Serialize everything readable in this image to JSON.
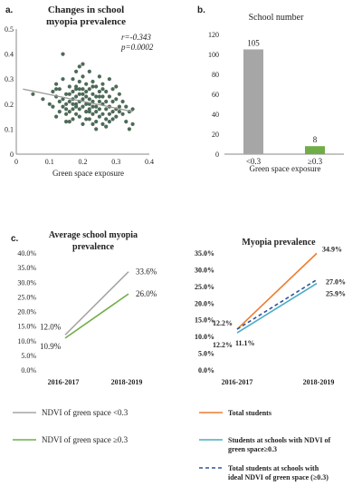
{
  "panels": {
    "a": {
      "tag": "a."
    },
    "b": {
      "tag": "b."
    },
    "c": {
      "tag": "c."
    }
  },
  "chart_data": [
    {
      "id": "a",
      "type": "scatter",
      "title_lines": [
        "Changes in school",
        "myopia prevalence"
      ],
      "xlabel": "Green space exposure",
      "ylabel": "",
      "xlim": [
        0,
        0.4
      ],
      "ylim": [
        0,
        0.5
      ],
      "xticks": [
        "0",
        "0.1",
        "0.2",
        "0.3",
        "0.4"
      ],
      "yticks": [
        "0",
        "0.1",
        "0.2",
        "0.3",
        "0.4",
        "0.5"
      ],
      "annotations": [
        "r=-0.343",
        "p=0.0002"
      ],
      "trendline": {
        "x": [
          0.02,
          0.35
        ],
        "y": [
          0.26,
          0.17
        ]
      },
      "point_color": "#4d6b57",
      "trend_color": "#999999",
      "points": [
        [
          0.05,
          0.24
        ],
        [
          0.08,
          0.22
        ],
        [
          0.1,
          0.2
        ],
        [
          0.11,
          0.25
        ],
        [
          0.11,
          0.19
        ],
        [
          0.12,
          0.15
        ],
        [
          0.12,
          0.23
        ],
        [
          0.12,
          0.28
        ],
        [
          0.13,
          0.26
        ],
        [
          0.13,
          0.21
        ],
        [
          0.13,
          0.17
        ],
        [
          0.14,
          0.4
        ],
        [
          0.14,
          0.3
        ],
        [
          0.14,
          0.22
        ],
        [
          0.14,
          0.19
        ],
        [
          0.15,
          0.24
        ],
        [
          0.15,
          0.18
        ],
        [
          0.15,
          0.13
        ],
        [
          0.15,
          0.16
        ],
        [
          0.16,
          0.27
        ],
        [
          0.16,
          0.21
        ],
        [
          0.16,
          0.24
        ],
        [
          0.16,
          0.17
        ],
        [
          0.17,
          0.3
        ],
        [
          0.17,
          0.25
        ],
        [
          0.17,
          0.2
        ],
        [
          0.17,
          0.14
        ],
        [
          0.17,
          0.22
        ],
        [
          0.18,
          0.33
        ],
        [
          0.18,
          0.26
        ],
        [
          0.18,
          0.23
        ],
        [
          0.18,
          0.19
        ],
        [
          0.18,
          0.16
        ],
        [
          0.18,
          0.27
        ],
        [
          0.19,
          0.35
        ],
        [
          0.19,
          0.29
        ],
        [
          0.19,
          0.24
        ],
        [
          0.19,
          0.21
        ],
        [
          0.19,
          0.18
        ],
        [
          0.19,
          0.15
        ],
        [
          0.2,
          0.36
        ],
        [
          0.2,
          0.31
        ],
        [
          0.2,
          0.26
        ],
        [
          0.2,
          0.22
        ],
        [
          0.2,
          0.19
        ],
        [
          0.2,
          0.12
        ],
        [
          0.2,
          0.24
        ],
        [
          0.21,
          0.28
        ],
        [
          0.21,
          0.25
        ],
        [
          0.21,
          0.2
        ],
        [
          0.21,
          0.17
        ],
        [
          0.21,
          0.23
        ],
        [
          0.22,
          0.33
        ],
        [
          0.22,
          0.26
        ],
        [
          0.22,
          0.22
        ],
        [
          0.22,
          0.18
        ],
        [
          0.22,
          0.14
        ],
        [
          0.22,
          0.2
        ],
        [
          0.23,
          0.29
        ],
        [
          0.23,
          0.24
        ],
        [
          0.23,
          0.21
        ],
        [
          0.23,
          0.16
        ],
        [
          0.23,
          0.19
        ],
        [
          0.23,
          0.12
        ],
        [
          0.24,
          0.27
        ],
        [
          0.24,
          0.23
        ],
        [
          0.24,
          0.19
        ],
        [
          0.24,
          0.1
        ],
        [
          0.24,
          0.17
        ],
        [
          0.25,
          0.31
        ],
        [
          0.25,
          0.25
        ],
        [
          0.25,
          0.21
        ],
        [
          0.25,
          0.18
        ],
        [
          0.25,
          0.15
        ],
        [
          0.26,
          0.28
        ],
        [
          0.26,
          0.23
        ],
        [
          0.26,
          0.2
        ],
        [
          0.26,
          0.16
        ],
        [
          0.26,
          0.12
        ],
        [
          0.27,
          0.25
        ],
        [
          0.27,
          0.21
        ],
        [
          0.27,
          0.18
        ],
        [
          0.27,
          0.14
        ],
        [
          0.28,
          0.3
        ],
        [
          0.28,
          0.23
        ],
        [
          0.28,
          0.19
        ],
        [
          0.28,
          0.16
        ],
        [
          0.29,
          0.21
        ],
        [
          0.29,
          0.17
        ],
        [
          0.29,
          0.26
        ],
        [
          0.3,
          0.22
        ],
        [
          0.3,
          0.18
        ],
        [
          0.3,
          0.15
        ],
        [
          0.31,
          0.24
        ],
        [
          0.31,
          0.19
        ],
        [
          0.32,
          0.21
        ],
        [
          0.32,
          0.16
        ],
        [
          0.33,
          0.19
        ],
        [
          0.33,
          0.13
        ],
        [
          0.34,
          0.17
        ],
        [
          0.34,
          0.1
        ],
        [
          0.35,
          0.18
        ],
        [
          0.35,
          0.12
        ],
        [
          0.3,
          0.27
        ],
        [
          0.27,
          0.11
        ],
        [
          0.21,
          0.14
        ],
        [
          0.16,
          0.13
        ],
        [
          0.24,
          0.13
        ],
        [
          0.26,
          0.26
        ],
        [
          0.15,
          0.2
        ],
        [
          0.29,
          0.14
        ],
        [
          0.18,
          0.2
        ],
        [
          0.22,
          0.17
        ],
        [
          0.19,
          0.26
        ],
        [
          0.25,
          0.23
        ],
        [
          0.31,
          0.17
        ],
        [
          0.12,
          0.26
        ],
        [
          0.28,
          0.13
        ],
        [
          0.17,
          0.18
        ],
        [
          0.23,
          0.27
        ]
      ]
    },
    {
      "id": "b",
      "type": "bar",
      "title": "School number",
      "categories": [
        "<0.3",
        "≥0.3"
      ],
      "values": [
        105,
        8
      ],
      "value_labels": [
        "105",
        "8"
      ],
      "bar_colors": [
        "#a6a6a6",
        "#70ad47"
      ],
      "xlabel": "Green space exposure",
      "ylim": [
        0,
        120
      ],
      "yticks": [
        "0",
        "20",
        "40",
        "60",
        "80",
        "100",
        "120"
      ]
    },
    {
      "id": "c",
      "type": "line",
      "title_lines": [
        "Average school myopia",
        "prevalence"
      ],
      "categories": [
        "2016-2017",
        "2018-2019"
      ],
      "ylim": [
        0,
        40
      ],
      "yticks": [
        "0.0%",
        "5.0%",
        "10.0%",
        "15.0%",
        "20.0%",
        "25.0%",
        "30.0%",
        "35.0%",
        "40.0%"
      ],
      "series": [
        {
          "name": "NDVI of green space <0.3",
          "values": [
            12.0,
            33.6
          ],
          "labels": [
            "12.0%",
            "33.6%"
          ],
          "color": "#a6a6a6",
          "dash": false
        },
        {
          "name": "NDVI of green space ≥0.3",
          "values": [
            10.9,
            26.0
          ],
          "labels": [
            "10.9%",
            "26.0%"
          ],
          "color": "#70ad47",
          "dash": false
        }
      ]
    },
    {
      "id": "d",
      "type": "line",
      "title": "Myopia prevalence",
      "categories": [
        "2016-2017",
        "2018-2019"
      ],
      "ylim": [
        0,
        35
      ],
      "yticks": [
        "0.0%",
        "5.0%",
        "10.0%",
        "15.0%",
        "20.0%",
        "25.0%",
        "30.0%",
        "35.0%"
      ],
      "series": [
        {
          "name": "Total students",
          "values": [
            12.2,
            34.9
          ],
          "labels": [
            "12.2%",
            "34.9%"
          ],
          "color": "#ed7d31",
          "dash": false
        },
        {
          "name": "Students at schools with NDVI of green space≥0.3",
          "values": [
            11.1,
            25.9
          ],
          "labels": [
            "11.1%",
            "25.9%"
          ],
          "color": "#4bacc6",
          "dash": false
        },
        {
          "name": "Total students at schools with ideal NDVI of green space (≥0.3)",
          "values": [
            12.2,
            27.0
          ],
          "labels": [
            "12.2%",
            "27.0%"
          ],
          "color": "#2f5597",
          "dash": true
        }
      ],
      "legend_lines": [
        [
          "Total students"
        ],
        [
          "Students at schools with NDVI of",
          "green space≥0.3"
        ],
        [
          "Total students at schools with",
          "ideal NDVI of green space (≥0.3)"
        ]
      ]
    }
  ]
}
